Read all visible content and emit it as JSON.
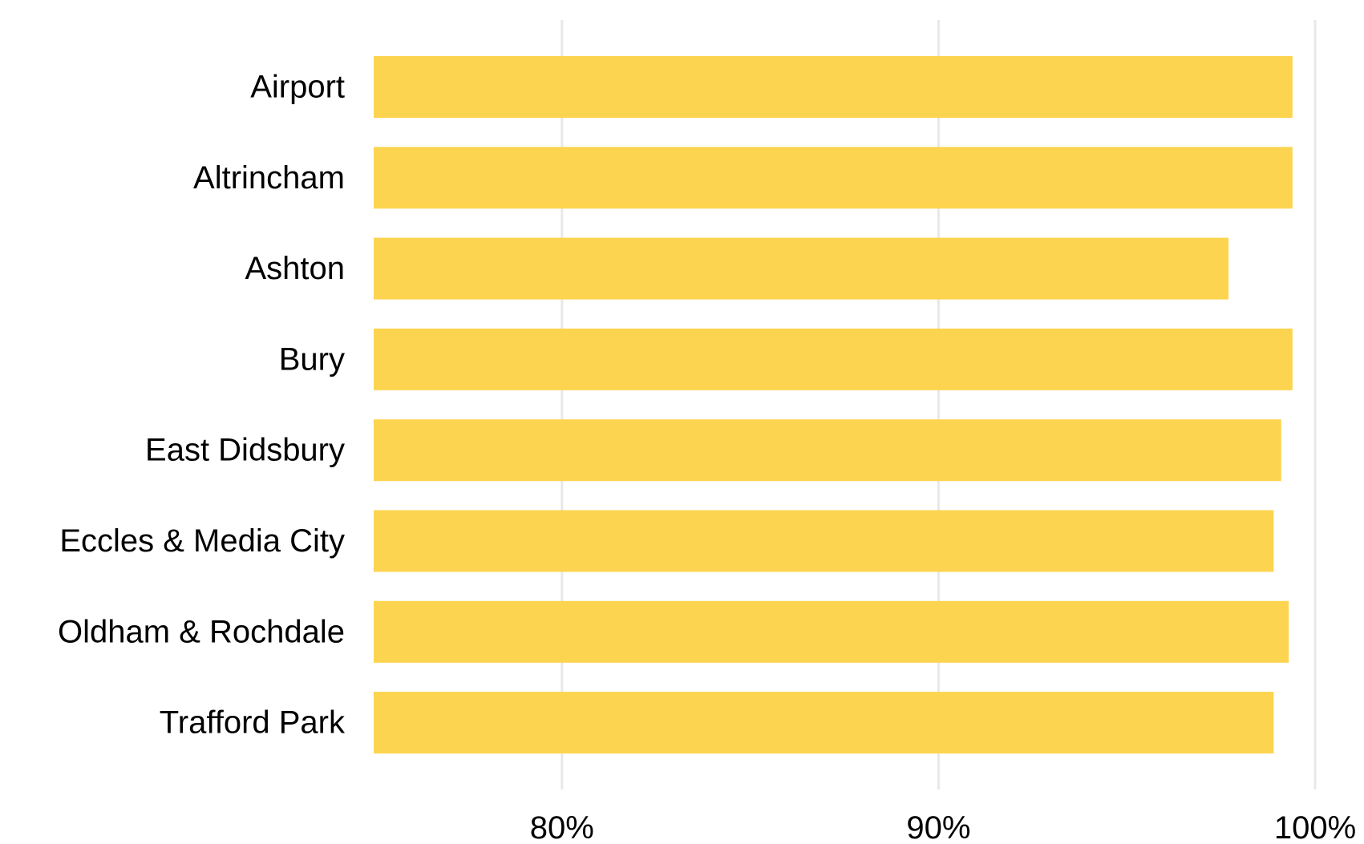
{
  "chart_data": {
    "type": "bar",
    "orientation": "horizontal",
    "title": "",
    "xlabel": "",
    "ylabel": "",
    "categories": [
      "Airport",
      "Altrincham",
      "Ashton",
      "Bury",
      "East Didsbury",
      "Eccles & Media City",
      "Oldham & Rochdale",
      "Trafford Park"
    ],
    "values": [
      99.4,
      99.4,
      97.7,
      99.4,
      99.1,
      98.9,
      99.3,
      98.9
    ],
    "xlim": [
      75,
      100
    ],
    "xticks": [
      80,
      90,
      100
    ],
    "xtick_labels": [
      "80%",
      "90%",
      "100%"
    ],
    "grid": "vertical",
    "legend": "none",
    "bar_color": "#fdd44f",
    "grid_color": "#e8e8e8"
  }
}
